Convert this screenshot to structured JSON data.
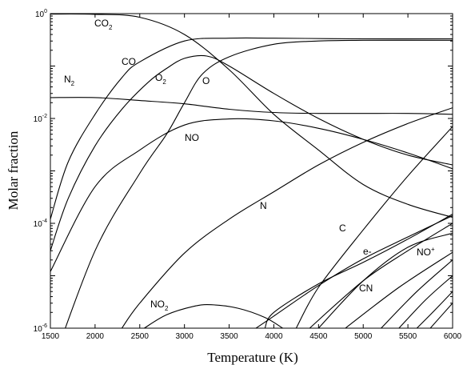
{
  "chart_data": {
    "type": "line",
    "xlabel": "Temperature (K)",
    "ylabel": "Molar fraction",
    "xlim": [
      1500,
      6000
    ],
    "ylim": [
      1e-06,
      1
    ],
    "yscale": "log",
    "grid": false,
    "x_ticks": [
      "1500",
      "2000",
      "2500",
      "3000",
      "3500",
      "4000",
      "4500",
      "5000",
      "5500",
      "6000"
    ],
    "y_ticks": [
      {
        "base": "10",
        "exp": "0"
      },
      {
        "base": "10",
        "exp": "-2"
      },
      {
        "base": "10",
        "exp": "-4"
      },
      {
        "base": "10",
        "exp": "-6"
      }
    ],
    "series": [
      {
        "name": "CO2",
        "label_base": "CO",
        "label_sub": "2",
        "label_sup": "",
        "points": [
          [
            1500,
            0.98
          ],
          [
            2000,
            0.97
          ],
          [
            2500,
            0.85
          ],
          [
            3000,
            0.4
          ],
          [
            3500,
            0.085
          ],
          [
            4000,
            0.012
          ],
          [
            4500,
            0.0025
          ],
          [
            5000,
            0.00055
          ],
          [
            5500,
            0.00023
          ],
          [
            6000,
            0.00013
          ]
        ]
      },
      {
        "name": "CO",
        "label_base": "CO",
        "label_sub": "",
        "label_sup": "",
        "points": [
          [
            1500,
            0.00012
          ],
          [
            1700,
            0.0015
          ],
          [
            2000,
            0.012
          ],
          [
            2300,
            0.06
          ],
          [
            2500,
            0.12
          ],
          [
            3000,
            0.3
          ],
          [
            3500,
            0.34
          ],
          [
            4000,
            0.34
          ],
          [
            5000,
            0.33
          ],
          [
            6000,
            0.33
          ]
        ]
      },
      {
        "name": "O2",
        "label_base": "O",
        "label_sub": "2",
        "label_sup": "",
        "points": [
          [
            1500,
            3e-05
          ],
          [
            1700,
            0.0003
          ],
          [
            2000,
            0.003
          ],
          [
            2300,
            0.015
          ],
          [
            2600,
            0.05
          ],
          [
            2800,
            0.09
          ],
          [
            3000,
            0.14
          ],
          [
            3250,
            0.155
          ],
          [
            3500,
            0.1
          ],
          [
            4000,
            0.03
          ],
          [
            4500,
            0.01
          ],
          [
            5000,
            0.004
          ],
          [
            5500,
            0.002
          ],
          [
            6000,
            0.0013
          ]
        ]
      },
      {
        "name": "O",
        "label_base": "O",
        "label_sub": "",
        "label_sup": "",
        "points": [
          [
            1500,
            1.6e-07
          ],
          [
            2000,
            3e-05
          ],
          [
            2500,
            0.0009
          ],
          [
            2800,
            0.005
          ],
          [
            3000,
            0.02
          ],
          [
            3200,
            0.07
          ],
          [
            3500,
            0.15
          ],
          [
            4000,
            0.26
          ],
          [
            4500,
            0.3
          ],
          [
            5000,
            0.31
          ],
          [
            5500,
            0.31
          ],
          [
            6000,
            0.31
          ]
        ]
      },
      {
        "name": "N2",
        "label_base": "N",
        "label_sub": "2",
        "label_sup": "",
        "points": [
          [
            1500,
            0.025
          ],
          [
            2000,
            0.025
          ],
          [
            2500,
            0.022
          ],
          [
            3000,
            0.019
          ],
          [
            3500,
            0.015
          ],
          [
            4000,
            0.013
          ],
          [
            4500,
            0.0125
          ],
          [
            5000,
            0.0125
          ],
          [
            5500,
            0.0125
          ],
          [
            6000,
            0.012
          ]
        ]
      },
      {
        "name": "NO",
        "label_base": "NO",
        "label_sub": "",
        "label_sup": "",
        "points": [
          [
            1500,
            1.2e-05
          ],
          [
            2000,
            0.0005
          ],
          [
            2500,
            0.0025
          ],
          [
            3000,
            0.0075
          ],
          [
            3500,
            0.0098
          ],
          [
            4000,
            0.009
          ],
          [
            4500,
            0.0065
          ],
          [
            5000,
            0.004
          ],
          [
            5500,
            0.0022
          ],
          [
            6000,
            0.0011
          ]
        ]
      },
      {
        "name": "N",
        "label_base": "N",
        "label_sub": "",
        "label_sup": "",
        "points": [
          [
            2300,
            1e-06
          ],
          [
            2500,
            3e-06
          ],
          [
            3000,
            2.7e-05
          ],
          [
            3500,
            0.00012
          ],
          [
            4000,
            0.0004
          ],
          [
            4500,
            0.0013
          ],
          [
            5000,
            0.0035
          ],
          [
            5500,
            0.008
          ],
          [
            6000,
            0.016
          ]
        ]
      },
      {
        "name": "C",
        "label_base": "C",
        "label_sub": "",
        "label_sup": "",
        "points": [
          [
            4250,
            1e-06
          ],
          [
            4500,
            6e-06
          ],
          [
            5000,
            7.5e-05
          ],
          [
            5500,
            0.0008
          ],
          [
            6000,
            0.007
          ]
        ]
      },
      {
        "name": "e-",
        "label_base": "e-",
        "label_sub": "",
        "label_sup": "",
        "points": [
          [
            3900,
            1e-06
          ],
          [
            4000,
            2e-06
          ],
          [
            4500,
            7e-06
          ],
          [
            5000,
            1.8e-05
          ],
          [
            5500,
            5e-05
          ],
          [
            6000,
            0.00015
          ]
        ]
      },
      {
        "name": "NO+",
        "label_base": "NO",
        "label_sub": "",
        "label_sup": "+",
        "points": [
          [
            3800,
            1e-06
          ],
          [
            4000,
            1.7e-06
          ],
          [
            4500,
            6.5e-06
          ],
          [
            5000,
            2.1e-05
          ],
          [
            5500,
            5.5e-05
          ],
          [
            6000,
            0.00014
          ]
        ]
      },
      {
        "name": "CN",
        "label_base": "CN",
        "label_sub": "",
        "label_sup": "",
        "points": [
          [
            4500,
            1e-06
          ],
          [
            5000,
            8e-06
          ],
          [
            5500,
            3.5e-05
          ],
          [
            6000,
            6.5e-05
          ]
        ]
      },
      {
        "name": "NO2",
        "label_base": "NO",
        "label_sub": "2",
        "label_sup": "",
        "points": [
          [
            2550,
            1e-06
          ],
          [
            2800,
            1.8e-06
          ],
          [
            3100,
            2.6e-06
          ],
          [
            3300,
            2.8e-06
          ],
          [
            3600,
            2.4e-06
          ],
          [
            3900,
            1.6e-06
          ],
          [
            4100,
            1e-06
          ]
        ]
      },
      {
        "name": "",
        "label_base": "",
        "label_sub": "",
        "label_sup": "",
        "points": [
          [
            4400,
            1e-06
          ],
          [
            5000,
            8e-06
          ],
          [
            5500,
            3e-05
          ],
          [
            6000,
            0.0001
          ]
        ]
      },
      {
        "name": "",
        "label_base": "",
        "label_sub": "",
        "label_sup": "",
        "points": [
          [
            4800,
            1e-06
          ],
          [
            5400,
            6e-06
          ],
          [
            6000,
            2.8e-05
          ]
        ]
      },
      {
        "name": "",
        "label_base": "",
        "label_sub": "",
        "label_sup": "",
        "points": [
          [
            5200,
            1e-06
          ],
          [
            5600,
            5e-06
          ],
          [
            6000,
            2e-05
          ]
        ]
      },
      {
        "name": "",
        "label_base": "",
        "label_sub": "",
        "label_sup": "",
        "points": [
          [
            5400,
            1e-06
          ],
          [
            5700,
            3.5e-06
          ],
          [
            6000,
            1e-05
          ]
        ]
      },
      {
        "name": "",
        "label_base": "",
        "label_sub": "",
        "label_sup": "",
        "points": [
          [
            5600,
            1e-06
          ],
          [
            5800,
            2.2e-06
          ],
          [
            6000,
            5e-06
          ]
        ]
      },
      {
        "name": "",
        "label_base": "",
        "label_sub": "",
        "label_sup": "",
        "points": [
          [
            5750,
            1e-06
          ],
          [
            6000,
            3e-06
          ]
        ]
      }
    ]
  }
}
